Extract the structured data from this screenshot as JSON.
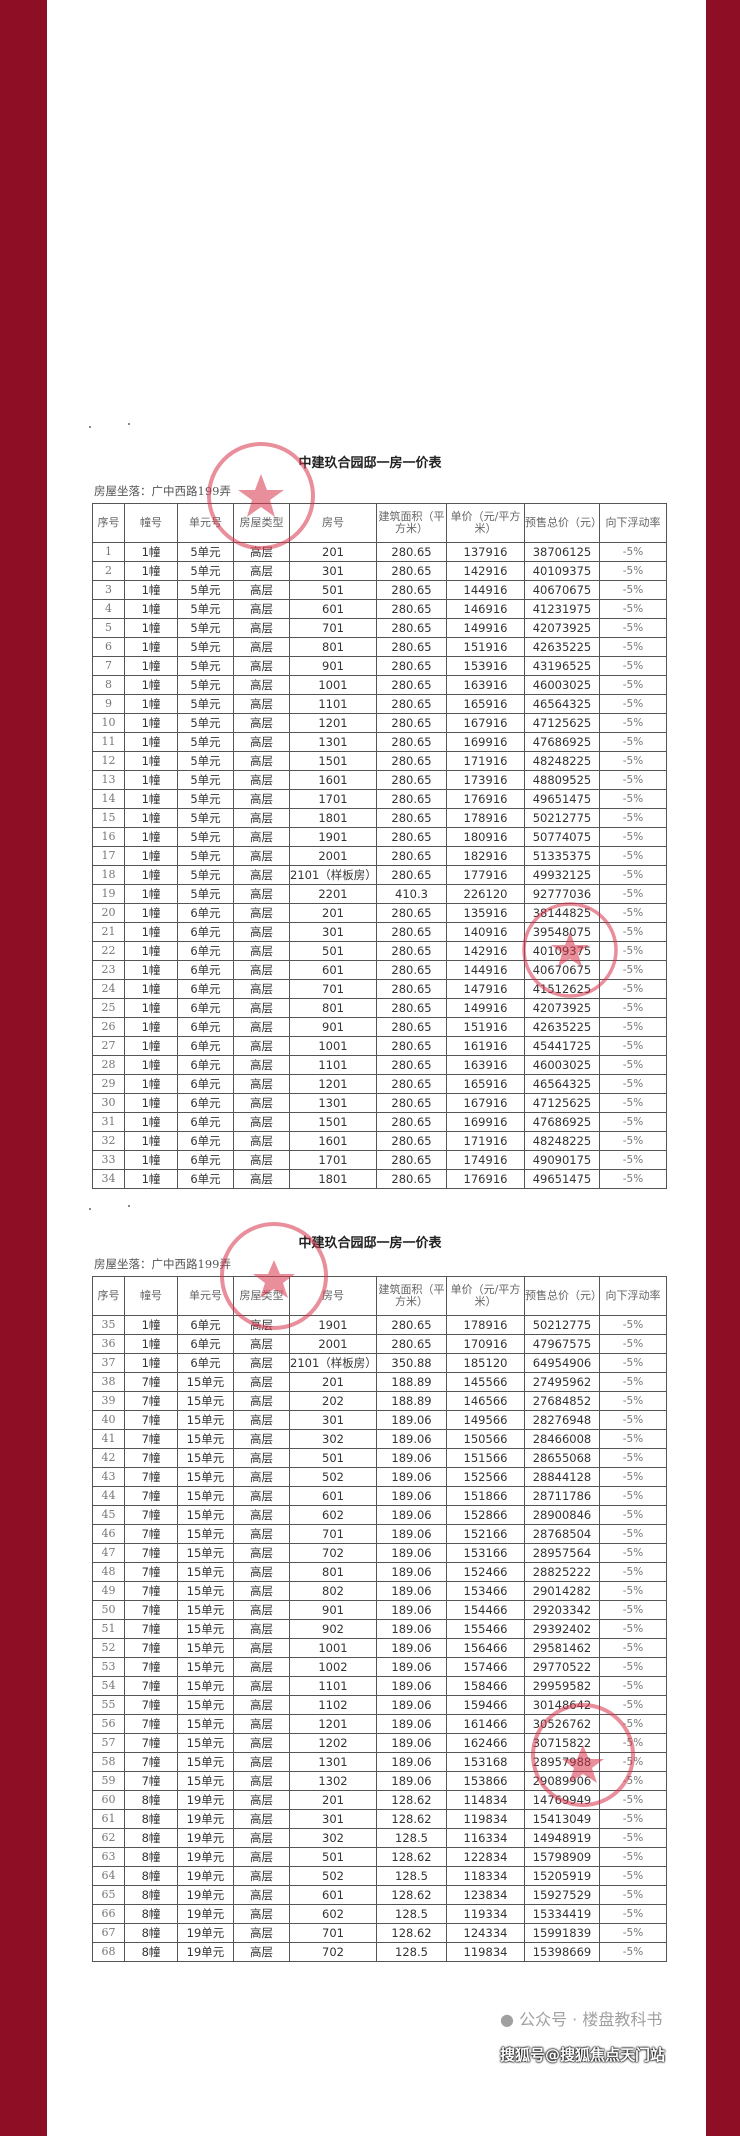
{
  "colors": {
    "border": "#8e0e25",
    "stamp": "#d8334a"
  },
  "header": [
    "序号",
    "幢号",
    "单元号",
    "房屋类型",
    "房号",
    "建筑面积（平方米）",
    "单价（元/平方米）",
    "预售总价（元）",
    "向下浮动率"
  ],
  "tables": [
    {
      "title": "中建玖合园邸一房一价表",
      "location": "房屋坐落：广中西路199弄",
      "rows": [
        [
          "1",
          "1幢",
          "5单元",
          "高层",
          "201",
          "280.65",
          "137916",
          "38706125",
          "-5%"
        ],
        [
          "2",
          "1幢",
          "5单元",
          "高层",
          "301",
          "280.65",
          "142916",
          "40109375",
          "-5%"
        ],
        [
          "3",
          "1幢",
          "5单元",
          "高层",
          "501",
          "280.65",
          "144916",
          "40670675",
          "-5%"
        ],
        [
          "4",
          "1幢",
          "5单元",
          "高层",
          "601",
          "280.65",
          "146916",
          "41231975",
          "-5%"
        ],
        [
          "5",
          "1幢",
          "5单元",
          "高层",
          "701",
          "280.65",
          "149916",
          "42073925",
          "-5%"
        ],
        [
          "6",
          "1幢",
          "5单元",
          "高层",
          "801",
          "280.65",
          "151916",
          "42635225",
          "-5%"
        ],
        [
          "7",
          "1幢",
          "5单元",
          "高层",
          "901",
          "280.65",
          "153916",
          "43196525",
          "-5%"
        ],
        [
          "8",
          "1幢",
          "5单元",
          "高层",
          "1001",
          "280.65",
          "163916",
          "46003025",
          "-5%"
        ],
        [
          "9",
          "1幢",
          "5单元",
          "高层",
          "1101",
          "280.65",
          "165916",
          "46564325",
          "-5%"
        ],
        [
          "10",
          "1幢",
          "5单元",
          "高层",
          "1201",
          "280.65",
          "167916",
          "47125625",
          "-5%"
        ],
        [
          "11",
          "1幢",
          "5单元",
          "高层",
          "1301",
          "280.65",
          "169916",
          "47686925",
          "-5%"
        ],
        [
          "12",
          "1幢",
          "5单元",
          "高层",
          "1501",
          "280.65",
          "171916",
          "48248225",
          "-5%"
        ],
        [
          "13",
          "1幢",
          "5单元",
          "高层",
          "1601",
          "280.65",
          "173916",
          "48809525",
          "-5%"
        ],
        [
          "14",
          "1幢",
          "5单元",
          "高层",
          "1701",
          "280.65",
          "176916",
          "49651475",
          "-5%"
        ],
        [
          "15",
          "1幢",
          "5单元",
          "高层",
          "1801",
          "280.65",
          "178916",
          "50212775",
          "-5%"
        ],
        [
          "16",
          "1幢",
          "5单元",
          "高层",
          "1901",
          "280.65",
          "180916",
          "50774075",
          "-5%"
        ],
        [
          "17",
          "1幢",
          "5单元",
          "高层",
          "2001",
          "280.65",
          "182916",
          "51335375",
          "-5%"
        ],
        [
          "18",
          "1幢",
          "5单元",
          "高层",
          "2101（样板房）",
          "280.65",
          "177916",
          "49932125",
          "-5%"
        ],
        [
          "19",
          "1幢",
          "5单元",
          "高层",
          "2201",
          "410.3",
          "226120",
          "92777036",
          "-5%"
        ],
        [
          "20",
          "1幢",
          "6单元",
          "高层",
          "201",
          "280.65",
          "135916",
          "38144825",
          "-5%"
        ],
        [
          "21",
          "1幢",
          "6单元",
          "高层",
          "301",
          "280.65",
          "140916",
          "39548075",
          "-5%"
        ],
        [
          "22",
          "1幢",
          "6单元",
          "高层",
          "501",
          "280.65",
          "142916",
          "40109375",
          "-5%"
        ],
        [
          "23",
          "1幢",
          "6单元",
          "高层",
          "601",
          "280.65",
          "144916",
          "40670675",
          "-5%"
        ],
        [
          "24",
          "1幢",
          "6单元",
          "高层",
          "701",
          "280.65",
          "147916",
          "41512625",
          "-5%"
        ],
        [
          "25",
          "1幢",
          "6单元",
          "高层",
          "801",
          "280.65",
          "149916",
          "42073925",
          "-5%"
        ],
        [
          "26",
          "1幢",
          "6单元",
          "高层",
          "901",
          "280.65",
          "151916",
          "42635225",
          "-5%"
        ],
        [
          "27",
          "1幢",
          "6单元",
          "高层",
          "1001",
          "280.65",
          "161916",
          "45441725",
          "-5%"
        ],
        [
          "28",
          "1幢",
          "6单元",
          "高层",
          "1101",
          "280.65",
          "163916",
          "46003025",
          "-5%"
        ],
        [
          "29",
          "1幢",
          "6单元",
          "高层",
          "1201",
          "280.65",
          "165916",
          "46564325",
          "-5%"
        ],
        [
          "30",
          "1幢",
          "6单元",
          "高层",
          "1301",
          "280.65",
          "167916",
          "47125625",
          "-5%"
        ],
        [
          "31",
          "1幢",
          "6单元",
          "高层",
          "1501",
          "280.65",
          "169916",
          "47686925",
          "-5%"
        ],
        [
          "32",
          "1幢",
          "6单元",
          "高层",
          "1601",
          "280.65",
          "171916",
          "48248225",
          "-5%"
        ],
        [
          "33",
          "1幢",
          "6单元",
          "高层",
          "1701",
          "280.65",
          "174916",
          "49090175",
          "-5%"
        ],
        [
          "34",
          "1幢",
          "6单元",
          "高层",
          "1801",
          "280.65",
          "176916",
          "49651475",
          "-5%"
        ]
      ]
    },
    {
      "title": "中建玖合园邸一房一价表",
      "location": "房屋坐落：广中西路199弄",
      "rows": [
        [
          "35",
          "1幢",
          "6单元",
          "高层",
          "1901",
          "280.65",
          "178916",
          "50212775",
          "-5%"
        ],
        [
          "36",
          "1幢",
          "6单元",
          "高层",
          "2001",
          "280.65",
          "170916",
          "47967575",
          "-5%"
        ],
        [
          "37",
          "1幢",
          "6单元",
          "高层",
          "2101（样板房）",
          "350.88",
          "185120",
          "64954906",
          "-5%"
        ],
        [
          "38",
          "7幢",
          "15单元",
          "高层",
          "201",
          "188.89",
          "145566",
          "27495962",
          "-5%"
        ],
        [
          "39",
          "7幢",
          "15单元",
          "高层",
          "202",
          "188.89",
          "146566",
          "27684852",
          "-5%"
        ],
        [
          "40",
          "7幢",
          "15单元",
          "高层",
          "301",
          "189.06",
          "149566",
          "28276948",
          "-5%"
        ],
        [
          "41",
          "7幢",
          "15单元",
          "高层",
          "302",
          "189.06",
          "150566",
          "28466008",
          "-5%"
        ],
        [
          "42",
          "7幢",
          "15单元",
          "高层",
          "501",
          "189.06",
          "151566",
          "28655068",
          "-5%"
        ],
        [
          "43",
          "7幢",
          "15单元",
          "高层",
          "502",
          "189.06",
          "152566",
          "28844128",
          "-5%"
        ],
        [
          "44",
          "7幢",
          "15单元",
          "高层",
          "601",
          "189.06",
          "151866",
          "28711786",
          "-5%"
        ],
        [
          "45",
          "7幢",
          "15单元",
          "高层",
          "602",
          "189.06",
          "152866",
          "28900846",
          "-5%"
        ],
        [
          "46",
          "7幢",
          "15单元",
          "高层",
          "701",
          "189.06",
          "152166",
          "28768504",
          "-5%"
        ],
        [
          "47",
          "7幢",
          "15单元",
          "高层",
          "702",
          "189.06",
          "153166",
          "28957564",
          "-5%"
        ],
        [
          "48",
          "7幢",
          "15单元",
          "高层",
          "801",
          "189.06",
          "152466",
          "28825222",
          "-5%"
        ],
        [
          "49",
          "7幢",
          "15单元",
          "高层",
          "802",
          "189.06",
          "153466",
          "29014282",
          "-5%"
        ],
        [
          "50",
          "7幢",
          "15单元",
          "高层",
          "901",
          "189.06",
          "154466",
          "29203342",
          "-5%"
        ],
        [
          "51",
          "7幢",
          "15单元",
          "高层",
          "902",
          "189.06",
          "155466",
          "29392402",
          "-5%"
        ],
        [
          "52",
          "7幢",
          "15单元",
          "高层",
          "1001",
          "189.06",
          "156466",
          "29581462",
          "-5%"
        ],
        [
          "53",
          "7幢",
          "15单元",
          "高层",
          "1002",
          "189.06",
          "157466",
          "29770522",
          "-5%"
        ],
        [
          "54",
          "7幢",
          "15单元",
          "高层",
          "1101",
          "189.06",
          "158466",
          "29959582",
          "-5%"
        ],
        [
          "55",
          "7幢",
          "15单元",
          "高层",
          "1102",
          "189.06",
          "159466",
          "30148642",
          "-5%"
        ],
        [
          "56",
          "7幢",
          "15单元",
          "高层",
          "1201",
          "189.06",
          "161466",
          "30526762",
          "-5%"
        ],
        [
          "57",
          "7幢",
          "15单元",
          "高层",
          "1202",
          "189.06",
          "162466",
          "30715822",
          "-5%"
        ],
        [
          "58",
          "7幢",
          "15单元",
          "高层",
          "1301",
          "189.06",
          "153168",
          "28957988",
          "-5%"
        ],
        [
          "59",
          "7幢",
          "15单元",
          "高层",
          "1302",
          "189.06",
          "153866",
          "29089906",
          "-5%"
        ],
        [
          "60",
          "8幢",
          "19单元",
          "高层",
          "201",
          "128.62",
          "114834",
          "14769949",
          "-5%"
        ],
        [
          "61",
          "8幢",
          "19单元",
          "高层",
          "301",
          "128.62",
          "119834",
          "15413049",
          "-5%"
        ],
        [
          "62",
          "8幢",
          "19单元",
          "高层",
          "302",
          "128.5",
          "116334",
          "14948919",
          "-5%"
        ],
        [
          "63",
          "8幢",
          "19单元",
          "高层",
          "501",
          "128.62",
          "122834",
          "15798909",
          "-5%"
        ],
        [
          "64",
          "8幢",
          "19单元",
          "高层",
          "502",
          "128.5",
          "118334",
          "15205919",
          "-5%"
        ],
        [
          "65",
          "8幢",
          "19单元",
          "高层",
          "601",
          "128.62",
          "123834",
          "15927529",
          "-5%"
        ],
        [
          "66",
          "8幢",
          "19单元",
          "高层",
          "602",
          "128.5",
          "119334",
          "15334419",
          "-5%"
        ],
        [
          "67",
          "8幢",
          "19单元",
          "高层",
          "701",
          "128.62",
          "124334",
          "15991839",
          "-5%"
        ],
        [
          "68",
          "8幢",
          "19单元",
          "高层",
          "702",
          "128.5",
          "119834",
          "15398669",
          "-5%"
        ]
      ]
    }
  ],
  "watermarks": {
    "wechat": "公众号 · 楼盘教科书",
    "sohu": "搜狐号@搜狐焦点天门站"
  },
  "icons": {
    "wechat_watermark": "wechat-icon",
    "stamp": "company-seal"
  }
}
